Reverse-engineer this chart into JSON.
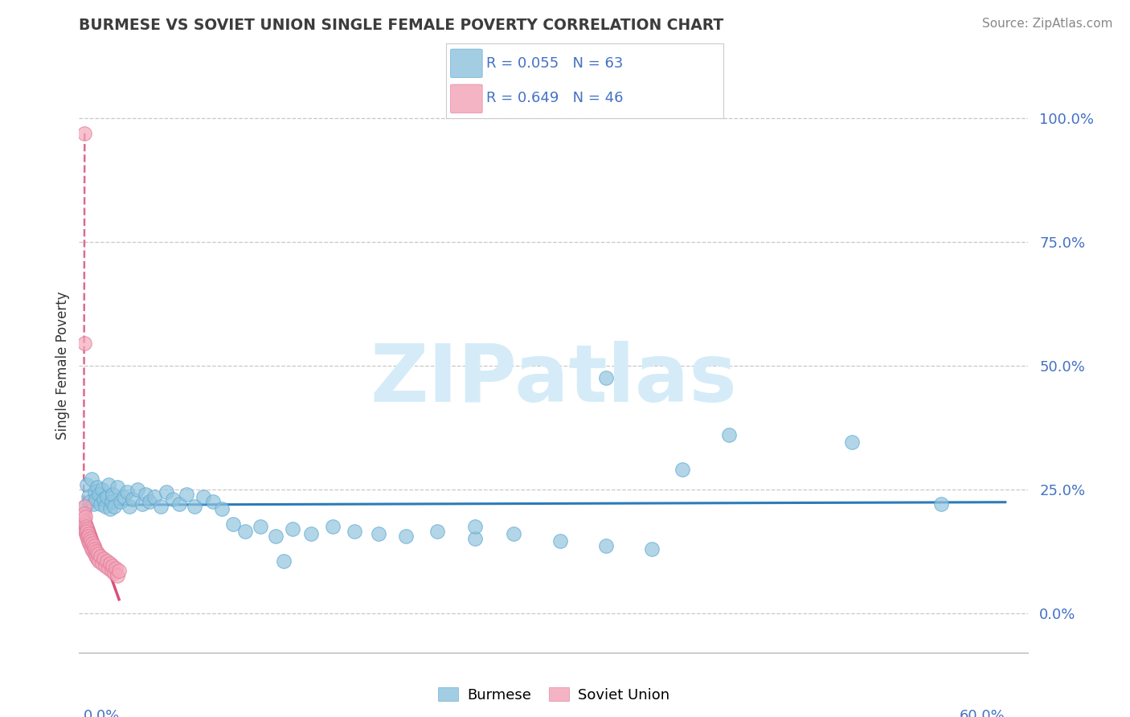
{
  "title": "BURMESE VS SOVIET UNION SINGLE FEMALE POVERTY CORRELATION CHART",
  "source": "Source: ZipAtlas.com",
  "ylabel": "Single Female Poverty",
  "ytick_labels": [
    "100.0%",
    "75.0%",
    "50.0%",
    "25.0%",
    "0.0%"
  ],
  "ytick_vals": [
    1.0,
    0.75,
    0.5,
    0.25,
    0.0
  ],
  "xlim": [
    -0.003,
    0.615
  ],
  "ylim": [
    -0.08,
    1.08
  ],
  "xtick_left_label": "0.0%",
  "xtick_right_label": "60.0%",
  "blue_color": "#92c5de",
  "blue_edge_color": "#5fa8d3",
  "pink_color": "#f4a7b9",
  "pink_edge_color": "#e07a9a",
  "blue_line_color": "#2b7bba",
  "pink_line_color": "#d9507a",
  "grid_color": "#c8c8c8",
  "text_color_blue": "#4472c4",
  "title_color": "#3c3c3c",
  "source_color": "#888888",
  "watermark_color": "#d5ecf8",
  "legend_blue_label": "Burmese",
  "legend_pink_label": "Soviet Union",
  "blue_R": "R = 0.055",
  "blue_N": "N = 63",
  "pink_R": "R = 0.649",
  "pink_N": "N = 46",
  "blue_points_x": [
    0.001,
    0.002,
    0.003,
    0.004,
    0.005,
    0.006,
    0.007,
    0.008,
    0.009,
    0.01,
    0.011,
    0.012,
    0.013,
    0.014,
    0.015,
    0.016,
    0.017,
    0.018,
    0.019,
    0.02,
    0.022,
    0.024,
    0.026,
    0.028,
    0.03,
    0.032,
    0.035,
    0.038,
    0.04,
    0.043,
    0.046,
    0.05,
    0.054,
    0.058,
    0.062,
    0.067,
    0.072,
    0.078,
    0.084,
    0.09,
    0.097,
    0.105,
    0.115,
    0.125,
    0.136,
    0.148,
    0.162,
    0.176,
    0.192,
    0.21,
    0.23,
    0.255,
    0.28,
    0.31,
    0.34,
    0.37,
    0.34,
    0.39,
    0.42,
    0.5,
    0.558,
    0.255,
    0.13
  ],
  "blue_points_y": [
    0.215,
    0.26,
    0.235,
    0.225,
    0.27,
    0.22,
    0.245,
    0.23,
    0.255,
    0.24,
    0.22,
    0.25,
    0.23,
    0.215,
    0.235,
    0.26,
    0.21,
    0.225,
    0.24,
    0.215,
    0.255,
    0.225,
    0.235,
    0.245,
    0.215,
    0.23,
    0.25,
    0.22,
    0.24,
    0.225,
    0.235,
    0.215,
    0.245,
    0.23,
    0.22,
    0.24,
    0.215,
    0.235,
    0.225,
    0.21,
    0.18,
    0.165,
    0.175,
    0.155,
    0.17,
    0.16,
    0.175,
    0.165,
    0.16,
    0.155,
    0.165,
    0.15,
    0.16,
    0.145,
    0.135,
    0.13,
    0.475,
    0.29,
    0.36,
    0.345,
    0.22,
    0.175,
    0.105
  ],
  "pink_points_x": [
    0.0005,
    0.0006,
    0.0007,
    0.0008,
    0.0009,
    0.001,
    0.0012,
    0.0014,
    0.0016,
    0.0018,
    0.002,
    0.0022,
    0.0025,
    0.0028,
    0.003,
    0.0033,
    0.0036,
    0.004,
    0.0044,
    0.0048,
    0.005,
    0.0055,
    0.006,
    0.0065,
    0.007,
    0.0075,
    0.008,
    0.0085,
    0.009,
    0.0095,
    0.01,
    0.011,
    0.012,
    0.013,
    0.014,
    0.015,
    0.016,
    0.017,
    0.018,
    0.019,
    0.02,
    0.021,
    0.022,
    0.023,
    0.0005,
    0.0006
  ],
  "pink_points_y": [
    0.215,
    0.2,
    0.185,
    0.17,
    0.18,
    0.195,
    0.165,
    0.175,
    0.16,
    0.17,
    0.155,
    0.165,
    0.15,
    0.16,
    0.145,
    0.155,
    0.14,
    0.15,
    0.135,
    0.145,
    0.13,
    0.14,
    0.125,
    0.135,
    0.12,
    0.13,
    0.115,
    0.125,
    0.11,
    0.12,
    0.105,
    0.115,
    0.1,
    0.11,
    0.095,
    0.105,
    0.09,
    0.1,
    0.085,
    0.095,
    0.08,
    0.09,
    0.075,
    0.085,
    0.545,
    0.97
  ]
}
